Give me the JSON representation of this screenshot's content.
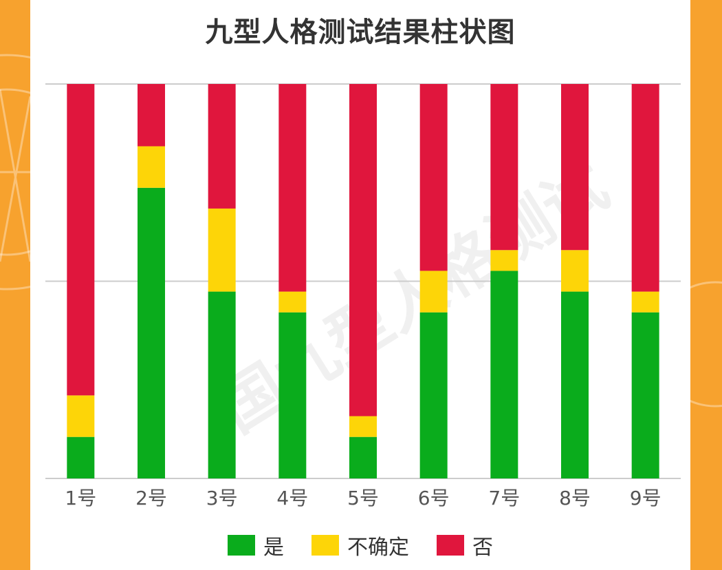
{
  "chart_data": {
    "type": "bar",
    "stacked": true,
    "title": "九型人格测试结果柱状图",
    "categories": [
      "1号",
      "2号",
      "3号",
      "4号",
      "5号",
      "6号",
      "7号",
      "8号",
      "9号"
    ],
    "series": [
      {
        "name": "是",
        "color": "#0aac1c",
        "values": [
          2,
          14,
          9,
          8,
          2,
          8,
          10,
          9,
          8
        ]
      },
      {
        "name": "不确定",
        "color": "#fdd508",
        "values": [
          2,
          2,
          4,
          1,
          1,
          2,
          1,
          2,
          1
        ]
      },
      {
        "name": "否",
        "color": "#e0163d",
        "values": [
          15,
          3,
          6,
          10,
          16,
          9,
          8,
          8,
          10
        ]
      }
    ],
    "ylim": [
      0,
      19
    ],
    "grid": true,
    "legend": "bottom"
  },
  "watermark": "国九型人格测试"
}
